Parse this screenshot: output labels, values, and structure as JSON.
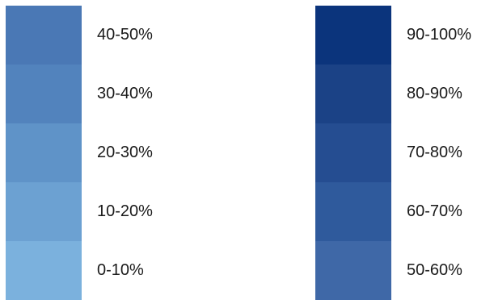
{
  "legend": {
    "left_column": [
      {
        "label": "40-50%",
        "color": "#4a78b5"
      },
      {
        "label": "30-40%",
        "color": "#5283bd"
      },
      {
        "label": "20-30%",
        "color": "#5f93c8"
      },
      {
        "label": "10-20%",
        "color": "#6ca1d2"
      },
      {
        "label": "0-10%",
        "color": "#7bb1dd"
      }
    ],
    "right_column": [
      {
        "label": "90-100%",
        "color": "#0b347c"
      },
      {
        "label": "80-90%",
        "color": "#1b4286"
      },
      {
        "label": "70-80%",
        "color": "#254d91"
      },
      {
        "label": "60-70%",
        "color": "#2f5a9c"
      },
      {
        "label": "50-60%",
        "color": "#3f68a7"
      }
    ]
  }
}
